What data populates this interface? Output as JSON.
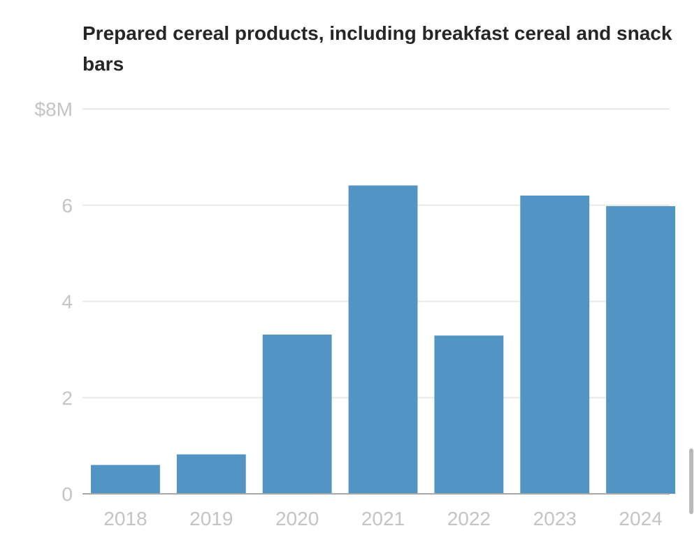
{
  "chart_data": {
    "type": "bar",
    "title": "Prepared cereal products, including breakfast cereal and snack bars",
    "categories": [
      "2018",
      "2019",
      "2020",
      "2021",
      "2022",
      "2023",
      "2024"
    ],
    "values": [
      0.6,
      0.82,
      3.31,
      6.41,
      3.29,
      6.2,
      5.98
    ],
    "ylim": [
      0,
      8
    ],
    "y_ticks": [
      0,
      2,
      4,
      6,
      8
    ],
    "y_tick_labels": [
      "0",
      "2",
      "4",
      "6",
      "$8M"
    ],
    "xlabel": "",
    "ylabel": "",
    "grid": true,
    "bar_color": "#5294c3",
    "gridline_color": "#e8e8e8",
    "tick_label_color": "#c4c4c4",
    "baseline_color": "#a8a8a8"
  }
}
